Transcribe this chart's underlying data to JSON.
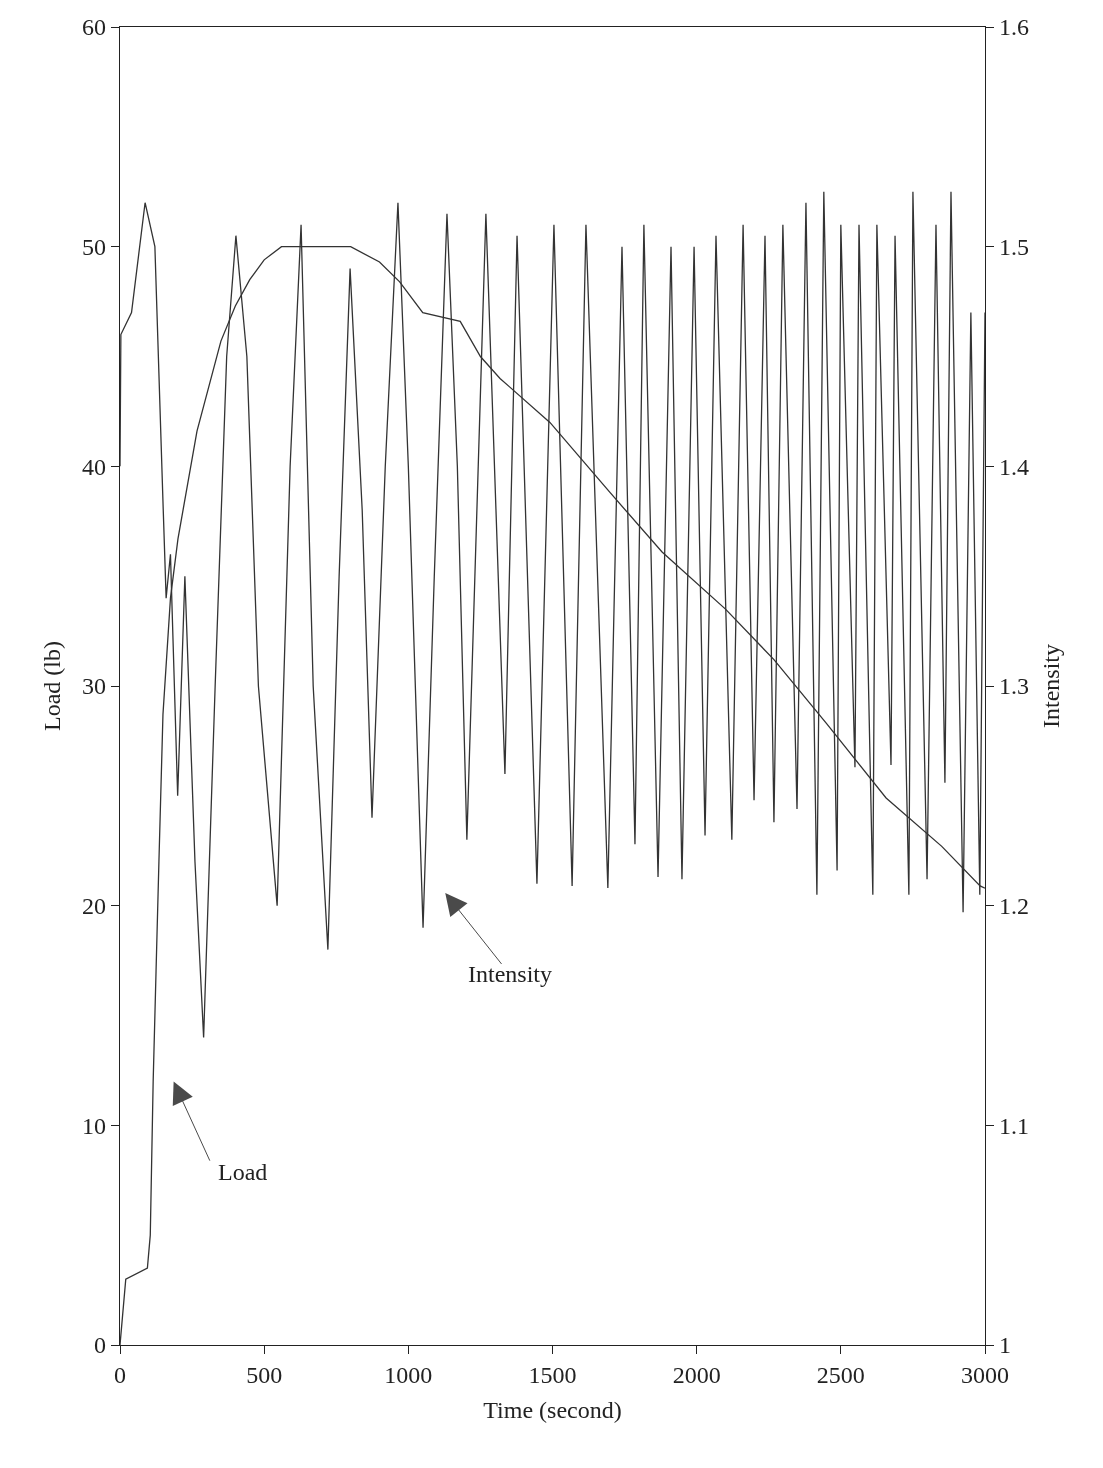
{
  "chart_data": {
    "type": "line",
    "xlabel": "Time (second)",
    "ylabel": "Load (lb)",
    "y2label": "Intensity",
    "xlim": [
      0,
      3000
    ],
    "xticks": [
      0,
      500,
      1000,
      1500,
      2000,
      2500,
      3000
    ],
    "ylim": [
      0,
      60
    ],
    "yticks": [
      0,
      10,
      20,
      30,
      40,
      50,
      60
    ],
    "y2lim": [
      1,
      1.6
    ],
    "y2ticks": [
      1,
      1.1,
      1.2,
      1.3,
      1.4,
      1.5,
      1.6
    ],
    "grid": false,
    "marker": "none",
    "line_style": "solid",
    "series": [
      {
        "color": "#333333",
        "x": [
          0,
          20,
          95,
          105,
          115,
          125,
          135,
          149,
          175,
          201,
          267,
          350,
          400,
          450,
          500,
          560,
          700,
          800,
          900,
          970,
          1050,
          1180,
          1250,
          1318,
          1491,
          1700,
          1880,
          2100,
          2268,
          2450,
          2657,
          2850,
          2983,
          3000
        ],
        "values": [
          0,
          3,
          3.5,
          5,
          12,
          17,
          22,
          28.7,
          34,
          36.7,
          41.6,
          45.7,
          47.3,
          48.5,
          49.4,
          50,
          50,
          50,
          49.3,
          48.4,
          47,
          46.6,
          45,
          44,
          42,
          38.8,
          36.1,
          33.5,
          31.2,
          28.3,
          24.9,
          22.7,
          20.9,
          20.8
        ]
      },
      {
        "color": "#333333",
        "axis": "y2",
        "x": [
          0,
          3,
          40,
          87,
          121,
          150,
          160,
          175,
          200,
          225,
          260,
          290,
          330,
          370,
          402,
          440,
          480,
          545,
          590,
          628,
          670,
          721,
          760,
          798,
          840,
          874,
          920,
          964,
          1000,
          1051,
          1090,
          1134,
          1170,
          1203,
          1269,
          1335,
          1377,
          1446,
          1505,
          1568,
          1616,
          1692,
          1741,
          1786,
          1817,
          1866,
          1911,
          1949,
          1991,
          2029,
          2067,
          2122,
          2161,
          2199,
          2237,
          2268,
          2299,
          2348,
          2379,
          2417,
          2441,
          2487,
          2500,
          2549,
          2563,
          2611,
          2625,
          2674,
          2688,
          2736,
          2750,
          2799,
          2830,
          2861,
          2882,
          2924,
          2951,
          2982,
          3000
        ],
        "values": [
          1.4,
          1.46,
          1.47,
          1.52,
          1.5,
          1.38,
          1.34,
          1.36,
          1.25,
          1.35,
          1.22,
          1.14,
          1.3,
          1.45,
          1.505,
          1.45,
          1.3,
          1.2,
          1.4,
          1.51,
          1.3,
          1.18,
          1.35,
          1.49,
          1.38,
          1.24,
          1.4,
          1.52,
          1.4,
          1.19,
          1.35,
          1.515,
          1.4,
          1.23,
          1.515,
          1.26,
          1.505,
          1.21,
          1.51,
          1.209,
          1.51,
          1.208,
          1.5,
          1.228,
          1.51,
          1.213,
          1.5,
          1.212,
          1.5,
          1.232,
          1.505,
          1.23,
          1.51,
          1.248,
          1.505,
          1.238,
          1.51,
          1.244,
          1.52,
          1.205,
          1.525,
          1.216,
          1.51,
          1.263,
          1.51,
          1.205,
          1.51,
          1.264,
          1.505,
          1.205,
          1.525,
          1.212,
          1.51,
          1.256,
          1.525,
          1.197,
          1.47,
          1.205,
          1.47
        ]
      }
    ],
    "annotations": [
      "Load",
      "Intensity"
    ]
  }
}
